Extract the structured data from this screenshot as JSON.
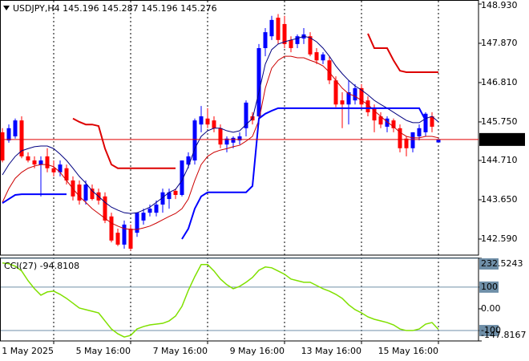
{
  "chart_data": [
    {
      "type": "candlestick",
      "title": "USDJPY,H4  145.196 145.287 145.196 145.276",
      "xlim": [
        -0.375,
        74.25
      ],
      "xticks": [
        {
          "value": 8,
          "label": "1 May 2025"
        },
        {
          "value": 20,
          "label": "5 May 16:00"
        },
        {
          "value": 32,
          "label": "7 May 16:00"
        },
        {
          "value": 44,
          "label": "9 May 16:00"
        },
        {
          "value": 56,
          "label": "13 May 16:00"
        },
        {
          "value": 68,
          "label": "15 May 16:00"
        }
      ],
      "ylim": [
        142.157,
        149.038
      ],
      "yticks": [
        {
          "value": 148.93,
          "label": "148.930"
        },
        {
          "value": 147.87,
          "label": "147.870"
        },
        {
          "value": 146.81,
          "label": "146.810"
        },
        {
          "value": 145.75,
          "label": "145.750"
        },
        {
          "value": 144.71,
          "label": "144.710"
        },
        {
          "value": 143.65,
          "label": "143.650"
        },
        {
          "value": 142.59,
          "label": "142.590"
        }
      ],
      "last_price": 145.276,
      "last_price_color": "#e00000",
      "up_color": "#0000ff",
      "down_color": "#ff0000",
      "open": [
        145.47,
        145.25,
        145.36,
        145.79,
        144.82,
        144.71,
        144.6,
        144.82,
        144.5,
        144.39,
        144.5,
        144.17,
        144.06,
        143.63,
        143.95,
        143.85,
        143.74,
        143.2,
        142.76,
        142.44,
        142.87,
        142.76,
        143.09,
        143.3,
        143.3,
        143.52,
        143.67,
        143.89,
        143.78,
        144.6,
        144.71,
        145.68,
        145.84,
        145.79,
        145.58,
        145.14,
        145.19,
        145.25,
        145.58,
        145.9,
        145.9,
        147.74,
        148.06,
        148.56,
        148.39,
        147.96,
        147.85,
        148.0,
        148.06,
        147.63,
        147.41,
        147.41,
        146.87,
        146.33,
        146.22,
        146.33,
        146.66,
        146.33,
        146.12,
        145.9,
        145.62,
        145.79,
        145.58,
        145.3,
        145.04,
        145.36,
        145.47,
        145.9,
        145.196
      ],
      "high": [
        145.58,
        145.68,
        145.84,
        145.9,
        144.93,
        144.82,
        144.82,
        145.04,
        144.71,
        144.71,
        144.6,
        144.28,
        144.17,
        144.17,
        144.06,
        143.95,
        143.85,
        143.3,
        142.87,
        143.09,
        142.98,
        143.3,
        143.41,
        143.52,
        143.63,
        143.95,
        143.95,
        143.95,
        144.71,
        144.93,
        145.84,
        146.18,
        146.12,
        145.9,
        145.68,
        145.36,
        145.36,
        145.47,
        146.33,
        146.01,
        147.85,
        148.28,
        148.61,
        148.66,
        148.61,
        148.06,
        148.11,
        148.28,
        148.17,
        147.74,
        147.63,
        147.52,
        146.98,
        146.55,
        146.87,
        146.77,
        146.77,
        146.44,
        146.22,
        146.01,
        145.9,
        145.84,
        145.68,
        145.36,
        145.47,
        145.68,
        146.01,
        146.01,
        145.287
      ],
      "low": [
        144.66,
        145.19,
        145.3,
        144.77,
        144.66,
        144.5,
        143.74,
        144.39,
        144.28,
        144.28,
        144.06,
        143.63,
        143.52,
        143.52,
        143.63,
        143.52,
        143.02,
        142.5,
        142.4,
        142.33,
        142.28,
        142.65,
        142.98,
        143.2,
        143.2,
        143.3,
        143.41,
        143.67,
        143.74,
        144.5,
        144.6,
        145.47,
        145.58,
        145.47,
        145.04,
        144.93,
        145.04,
        145.14,
        145.36,
        145.68,
        145.68,
        147.52,
        147.96,
        147.85,
        147.74,
        147.63,
        147.74,
        147.85,
        147.52,
        147.31,
        147.31,
        146.77,
        146.15,
        145.58,
        145.68,
        146.22,
        146.12,
        145.9,
        145.47,
        145.58,
        145.47,
        145.47,
        144.93,
        144.82,
        144.93,
        145.25,
        145.36,
        145.47,
        145.196
      ],
      "close": [
        144.71,
        145.58,
        145.79,
        144.82,
        144.71,
        144.6,
        144.71,
        144.5,
        144.39,
        144.6,
        144.17,
        143.74,
        143.63,
        144.06,
        143.67,
        143.63,
        143.09,
        142.55,
        142.44,
        142.98,
        142.33,
        143.3,
        143.3,
        143.41,
        143.52,
        143.85,
        143.85,
        143.78,
        144.71,
        144.82,
        145.79,
        145.9,
        145.68,
        145.58,
        145.14,
        145.3,
        145.32,
        145.36,
        146.27,
        145.79,
        147.74,
        148.17,
        148.5,
        147.96,
        147.85,
        147.74,
        148.06,
        148.11,
        147.57,
        147.41,
        147.57,
        146.87,
        146.22,
        146.22,
        146.55,
        146.66,
        146.22,
        146.01,
        145.79,
        145.68,
        145.84,
        145.58,
        145.04,
        145.04,
        145.47,
        145.58,
        145.97,
        145.62,
        145.276
      ],
      "lines": [
        {
          "color": "#000080",
          "width": 1,
          "values": [
            144.32,
            144.6,
            144.82,
            144.97,
            145.03,
            145.08,
            145.1,
            145.1,
            145.03,
            144.88,
            144.71,
            144.5,
            144.28,
            144.1,
            143.89,
            143.74,
            143.58,
            143.45,
            143.37,
            143.3,
            143.28,
            143.3,
            143.37,
            143.45,
            143.58,
            143.71,
            143.85,
            143.93,
            144.17,
            144.54,
            145.03,
            145.36,
            145.51,
            145.58,
            145.58,
            145.51,
            145.47,
            145.51,
            145.68,
            145.84,
            146.55,
            147.31,
            147.7,
            147.85,
            147.91,
            147.96,
            148.0,
            148.06,
            148.02,
            147.91,
            147.74,
            147.52,
            147.26,
            147.05,
            146.87,
            146.72,
            146.61,
            146.48,
            146.33,
            146.22,
            146.12,
            146.01,
            145.9,
            145.79,
            145.73,
            145.73,
            145.84,
            145.9,
            145.75
          ]
        },
        {
          "color": "#cc0000",
          "width": 1,
          "values": [
            143.58,
            143.95,
            144.23,
            144.39,
            144.5,
            144.56,
            144.6,
            144.6,
            144.54,
            144.39,
            144.17,
            143.95,
            143.74,
            143.58,
            143.41,
            143.28,
            143.15,
            143.02,
            142.94,
            142.87,
            142.85,
            142.85,
            142.89,
            142.94,
            143.02,
            143.11,
            143.2,
            143.28,
            143.41,
            143.67,
            144.17,
            144.6,
            144.82,
            144.93,
            144.99,
            145.03,
            145.08,
            145.12,
            145.23,
            145.36,
            145.79,
            146.66,
            147.2,
            147.41,
            147.52,
            147.52,
            147.48,
            147.48,
            147.41,
            147.35,
            147.26,
            147.09,
            146.87,
            146.66,
            146.51,
            146.44,
            146.33,
            146.22,
            146.05,
            145.9,
            145.75,
            145.62,
            145.47,
            145.36,
            145.32,
            145.32,
            145.36,
            145.36,
            145.32
          ]
        },
        {
          "color": "#0000ff",
          "width": 2,
          "values": [
            143.56,
            143.67,
            143.78,
            143.8,
            143.8,
            143.8,
            143.8,
            143.8,
            143.8,
            143.8,
            143.8,
            null,
            null,
            null,
            null,
            null,
            null,
            null,
            null,
            null,
            null,
            null,
            null,
            null,
            null,
            null,
            null,
            null,
            142.59,
            142.87,
            143.41,
            143.74,
            143.85,
            143.85,
            143.85,
            143.85,
            143.85,
            143.85,
            143.85,
            144.02,
            145.84,
            145.97,
            146.05,
            146.12,
            146.12,
            146.12,
            146.12,
            146.12,
            146.12,
            146.12,
            146.12,
            146.12,
            146.12,
            146.12,
            146.12,
            146.12,
            146.12,
            146.12,
            146.12,
            146.12,
            146.12,
            146.12,
            146.12,
            146.12,
            146.12,
            146.12,
            145.79,
            null,
            null
          ]
        },
        {
          "color": "#dd0000",
          "width": 2,
          "values": [
            null,
            null,
            null,
            null,
            null,
            null,
            null,
            null,
            null,
            null,
            null,
            145.84,
            145.75,
            145.68,
            145.68,
            145.64,
            145.03,
            144.6,
            144.5,
            144.5,
            144.5,
            144.5,
            144.5,
            144.5,
            144.5,
            144.5,
            144.5,
            144.5,
            null,
            null,
            null,
            null,
            null,
            null,
            null,
            null,
            null,
            null,
            null,
            null,
            null,
            null,
            null,
            null,
            null,
            null,
            null,
            null,
            null,
            null,
            null,
            null,
            null,
            null,
            null,
            null,
            null,
            148.13,
            147.74,
            147.74,
            147.74,
            147.41,
            147.13,
            147.09,
            147.09,
            147.09,
            147.09,
            147.09,
            147.09
          ]
        }
      ]
    },
    {
      "type": "line",
      "title": "CCI(27) -94.8108",
      "ylim": [
        -147.8167,
        232.5243
      ],
      "yticks": [
        232.5243,
        100,
        {
          "value": 0,
          "label": "0.00"
        },
        -100,
        -147.8167
      ],
      "color": "#80e000",
      "values": [
        211.1,
        207.4,
        196.3,
        174.1,
        129.6,
        92.6,
        63.0,
        77.8,
        81.5,
        66.7,
        48.1,
        25.9,
        3.7,
        -3.7,
        -11.1,
        -18.5,
        -55.6,
        -92.6,
        -114.8,
        -129.6,
        -122.2,
        -92.6,
        -81.5,
        -74.1,
        -70.4,
        -66.7,
        -55.6,
        -33.3,
        11.1,
        85.2,
        148.1,
        203.7,
        203.7,
        174.1,
        137.0,
        111.1,
        92.6,
        103.7,
        122.2,
        144.4,
        177.8,
        192.6,
        188.9,
        174.1,
        159.3,
        137.0,
        129.6,
        122.2,
        122.2,
        107.4,
        92.6,
        81.5,
        66.7,
        48.1,
        18.5,
        -3.7,
        -18.5,
        -37.0,
        -48.1,
        -55.6,
        -63.0,
        -74.1,
        -92.6,
        -100.0,
        -100.0,
        -92.6,
        -70.4,
        -63.0,
        -94.8108
      ]
    }
  ]
}
